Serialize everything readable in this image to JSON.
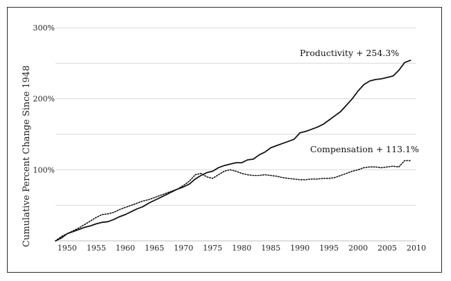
{
  "chart_data": {
    "type": "line",
    "title": "",
    "xlabel": "",
    "ylabel": "Cumulative Percent Change Since 1948",
    "xlim": [
      1948,
      2010
    ],
    "ylim": [
      0,
      300
    ],
    "x_ticks": [
      "1950",
      "1955",
      "1960",
      "1965",
      "1970",
      "1975",
      "1980",
      "1985",
      "1990",
      "1995",
      "2000",
      "2005",
      "2010"
    ],
    "y_ticks": [
      "100%",
      "200%",
      "300%"
    ],
    "grid": true,
    "annotations": [
      {
        "text": "Productivity + 254.3%",
        "series": "Productivity"
      },
      {
        "text": "Compensation + 113.1%",
        "series": "Compensation"
      }
    ],
    "series": [
      {
        "name": "Productivity",
        "style": "solid",
        "x": [
          1948,
          1949,
          1950,
          1951,
          1952,
          1953,
          1954,
          1955,
          1956,
          1957,
          1958,
          1959,
          1960,
          1961,
          1962,
          1963,
          1964,
          1965,
          1966,
          1967,
          1968,
          1969,
          1970,
          1971,
          1972,
          1973,
          1974,
          1975,
          1976,
          1977,
          1978,
          1979,
          1980,
          1981,
          1982,
          1983,
          1984,
          1985,
          1986,
          1987,
          1988,
          1989,
          1990,
          1991,
          1992,
          1993,
          1994,
          1995,
          1996,
          1997,
          1998,
          1999,
          2000,
          2001,
          2002,
          2003,
          2004,
          2005,
          2006,
          2007,
          2008,
          2009
        ],
        "y": [
          0,
          4,
          10,
          13,
          16,
          19,
          21,
          24,
          26,
          27,
          30,
          34,
          37,
          41,
          45,
          48,
          53,
          57,
          61,
          65,
          69,
          73,
          76,
          80,
          87,
          92,
          96,
          98,
          103,
          106,
          108,
          110,
          110,
          114,
          115,
          121,
          125,
          131,
          134,
          137,
          140,
          143,
          152,
          154,
          157,
          160,
          164,
          170,
          176,
          182,
          191,
          200,
          211,
          220,
          225,
          227,
          228,
          230,
          232,
          240,
          251,
          254
        ]
      },
      {
        "name": "Compensation",
        "style": "dotted",
        "x": [
          1948,
          1949,
          1950,
          1951,
          1952,
          1953,
          1954,
          1955,
          1956,
          1957,
          1958,
          1959,
          1960,
          1961,
          1962,
          1963,
          1964,
          1965,
          1966,
          1967,
          1968,
          1969,
          1970,
          1971,
          1972,
          1973,
          1974,
          1975,
          1976,
          1977,
          1978,
          1979,
          1980,
          1981,
          1982,
          1983,
          1984,
          1985,
          1986,
          1987,
          1988,
          1989,
          1990,
          1991,
          1992,
          1993,
          1994,
          1995,
          1996,
          1997,
          1998,
          1999,
          2000,
          2001,
          2002,
          2003,
          2004,
          2005,
          2006,
          2007,
          2008,
          2009
        ],
        "y": [
          0,
          6,
          10,
          14,
          18,
          23,
          28,
          33,
          37,
          38,
          40,
          44,
          47,
          50,
          53,
          56,
          58,
          61,
          64,
          67,
          70,
          73,
          78,
          84,
          93,
          95,
          90,
          88,
          93,
          98,
          100,
          98,
          95,
          93,
          92,
          92,
          93,
          92,
          91,
          89,
          88,
          87,
          86,
          86,
          87,
          87,
          88,
          88,
          89,
          92,
          95,
          98,
          100,
          103,
          104,
          104,
          103,
          104,
          105,
          104,
          113,
          113
        ]
      }
    ]
  }
}
